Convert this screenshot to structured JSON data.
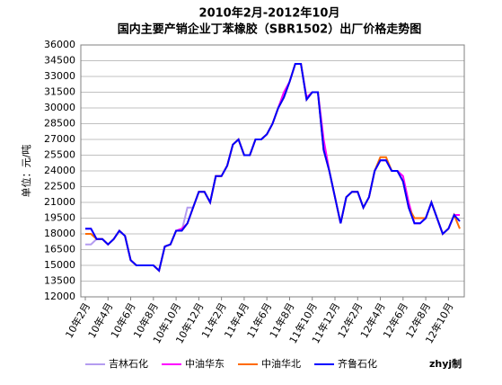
{
  "chart_data": {
    "type": "line",
    "title": "2010年2月-2012年10月",
    "subtitle": "国内主要产销企业丁苯橡胶（SBR1502）出厂价格走势图",
    "ylabel": "单位：元/吨",
    "annotation": "zhyj制",
    "categories": [
      "10年2月",
      null,
      null,
      null,
      "10年4月",
      null,
      null,
      null,
      "10年6月",
      null,
      null,
      null,
      "10年8月",
      null,
      null,
      null,
      "10年10月",
      null,
      null,
      null,
      "10年12月",
      null,
      null,
      null,
      "11年2月",
      null,
      null,
      null,
      "11年4月",
      null,
      null,
      null,
      "11年6月",
      null,
      null,
      null,
      "11年8月",
      null,
      null,
      null,
      "11年10月",
      null,
      null,
      null,
      "11年12月",
      null,
      null,
      null,
      "12年2月",
      null,
      null,
      null,
      "12年4月",
      null,
      null,
      null,
      "12年6月",
      null,
      null,
      null,
      "12年8月",
      null,
      null,
      null,
      "12年10月",
      null,
      null
    ],
    "series": [
      {
        "name": "吉林石化",
        "color": "#b49cf0",
        "values": [
          17000,
          17000,
          17500,
          17500,
          17000,
          17500,
          18300,
          17800,
          15500,
          15000,
          15000,
          15000,
          15000,
          14500,
          16800,
          17000,
          18300,
          18300,
          20500,
          20500,
          22000,
          22000,
          21000,
          23500,
          23500,
          24500,
          26500,
          27000,
          25500,
          25500,
          27000,
          27000,
          27500,
          28500,
          30000,
          31000,
          32500,
          34200,
          34200,
          30800,
          31500,
          31500,
          26000,
          24000,
          21500,
          19000,
          21500,
          22000,
          22000,
          20500,
          21500,
          24000,
          25000,
          25000,
          24000,
          24000,
          23000,
          20500,
          19000,
          19000,
          19500,
          21000,
          19500,
          18000,
          18500,
          19800,
          19800
        ]
      },
      {
        "name": "中油华东",
        "color": "#ff00ff",
        "values": [
          18500,
          18500,
          17500,
          17500,
          17000,
          17500,
          18300,
          17800,
          15500,
          15000,
          15000,
          15000,
          15000,
          14500,
          16800,
          17000,
          18300,
          18500,
          19000,
          20500,
          22000,
          22000,
          21000,
          23500,
          23500,
          24500,
          26500,
          27000,
          25500,
          25500,
          27000,
          27000,
          27500,
          28500,
          30000,
          31500,
          32500,
          34200,
          34200,
          31000,
          31500,
          31500,
          27000,
          24000,
          21500,
          19000,
          21500,
          22000,
          22000,
          20500,
          21500,
          24000,
          25000,
          25000,
          24000,
          24000,
          23500,
          21000,
          19000,
          19000,
          19500,
          21000,
          19500,
          18000,
          18500,
          19800,
          19800
        ]
      },
      {
        "name": "中油华北",
        "color": "#ff6a00",
        "values": [
          18000,
          18000,
          17500,
          17500,
          17000,
          17500,
          18300,
          17800,
          15500,
          15000,
          15000,
          15000,
          15000,
          14500,
          16800,
          17000,
          18300,
          18300,
          19000,
          20500,
          22000,
          22000,
          21000,
          23500,
          23500,
          24500,
          26500,
          27000,
          25500,
          25500,
          27000,
          27000,
          27500,
          28500,
          30000,
          31000,
          32500,
          34200,
          34200,
          30800,
          31500,
          31500,
          26000,
          24000,
          21500,
          19000,
          21500,
          22000,
          22000,
          20500,
          21500,
          24000,
          25300,
          25300,
          24000,
          24000,
          23000,
          20500,
          19500,
          19500,
          19500,
          21000,
          19500,
          18000,
          18500,
          19800,
          18500
        ]
      },
      {
        "name": "齐鲁石化",
        "color": "#0000ff",
        "values": [
          18500,
          18500,
          17500,
          17500,
          17000,
          17500,
          18300,
          17800,
          15500,
          15000,
          15000,
          15000,
          15000,
          14500,
          16800,
          17000,
          18300,
          18300,
          19000,
          20500,
          22000,
          22000,
          21000,
          23500,
          23500,
          24500,
          26500,
          27000,
          25500,
          25500,
          27000,
          27000,
          27500,
          28500,
          30000,
          31000,
          32500,
          34200,
          34200,
          30800,
          31500,
          31500,
          26000,
          24000,
          21500,
          19000,
          21500,
          22000,
          22000,
          20500,
          21500,
          24000,
          25000,
          25000,
          24000,
          24000,
          23000,
          20500,
          19000,
          19000,
          19500,
          21000,
          19500,
          18000,
          18500,
          19800,
          19200
        ]
      }
    ],
    "ylim": [
      12000,
      36000
    ],
    "yticks": [
      12000,
      13500,
      15000,
      16500,
      18000,
      19500,
      21000,
      22500,
      24000,
      25500,
      27000,
      28500,
      30000,
      31500,
      33000,
      34500,
      36000
    ],
    "grid": true
  }
}
